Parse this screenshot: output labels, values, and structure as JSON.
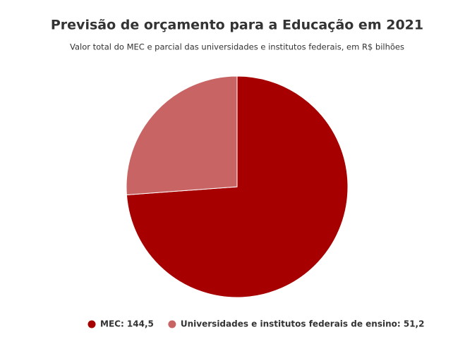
{
  "chart_data": {
    "type": "pie",
    "title": "Previsão de orçamento para a Educação em 2021",
    "subtitle": "Valor total do MEC e parcial das universidades e institutos federais, em R$ bilhões",
    "categories": [
      "MEC: 144,5",
      "Universidades e institutos federais de ensino: 51,2"
    ],
    "values": [
      144.5,
      51.2
    ],
    "colors": [
      "#a60000",
      "#c96464"
    ],
    "legend": "bottom"
  }
}
